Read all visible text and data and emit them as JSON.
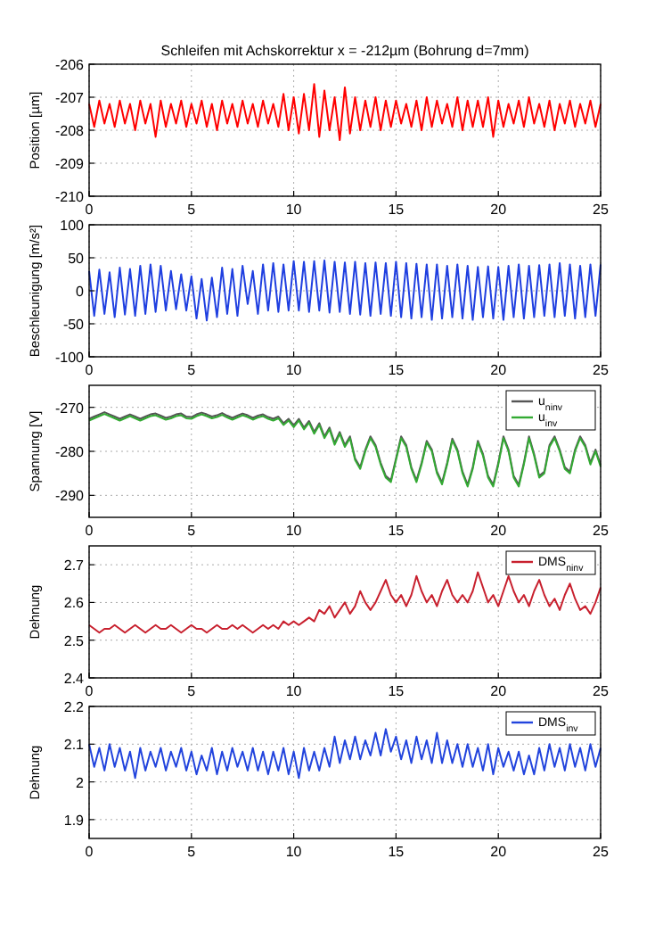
{
  "chart_data": [
    {
      "type": "line",
      "title": "Schleifen mit Achskorrektur x = -212µm (Bohrung d=7mm)",
      "ylabel": "Position [µm]",
      "xlim": [
        0,
        25
      ],
      "xticks": [
        0,
        5,
        10,
        15,
        20,
        25
      ],
      "ylim": [
        -210,
        -206
      ],
      "yticks": [
        -210,
        -209,
        -208,
        -207,
        -206
      ],
      "grid": true,
      "legend": false,
      "x": [
        0,
        0.25,
        0.5,
        0.75,
        1,
        1.25,
        1.5,
        1.75,
        2,
        2.25,
        2.5,
        2.75,
        3,
        3.25,
        3.5,
        3.75,
        4,
        4.25,
        4.5,
        4.75,
        5,
        5.25,
        5.5,
        5.75,
        6,
        6.25,
        6.5,
        6.75,
        7,
        7.25,
        7.5,
        7.75,
        8,
        8.25,
        8.5,
        8.75,
        9,
        9.25,
        9.5,
        9.75,
        10,
        10.25,
        10.5,
        10.75,
        11,
        11.25,
        11.5,
        11.75,
        12,
        12.25,
        12.5,
        12.75,
        13,
        13.25,
        13.5,
        13.75,
        14,
        14.25,
        14.5,
        14.75,
        15,
        15.25,
        15.5,
        15.75,
        16,
        16.25,
        16.5,
        16.75,
        17,
        17.25,
        17.5,
        17.75,
        18,
        18.25,
        18.5,
        18.75,
        19,
        19.25,
        19.5,
        19.75,
        20,
        20.25,
        20.5,
        20.75,
        21,
        21.25,
        21.5,
        21.75,
        22,
        22.25,
        22.5,
        22.75,
        23,
        23.25,
        23.5,
        23.75,
        24,
        24.25,
        24.5,
        24.75,
        25
      ],
      "series": [
        {
          "color": "#ff0000",
          "values": [
            -207.2,
            -207.9,
            -207.1,
            -207.8,
            -207.2,
            -207.9,
            -207.1,
            -207.8,
            -207.2,
            -208.0,
            -207.1,
            -207.8,
            -207.2,
            -208.2,
            -207.1,
            -207.9,
            -207.2,
            -207.8,
            -207.1,
            -207.9,
            -207.2,
            -207.8,
            -207.1,
            -207.9,
            -207.2,
            -208.0,
            -207.1,
            -207.8,
            -207.2,
            -207.9,
            -207.1,
            -207.8,
            -207.2,
            -207.9,
            -207.1,
            -207.8,
            -207.2,
            -207.9,
            -206.9,
            -208.0,
            -207.0,
            -208.1,
            -206.9,
            -208.0,
            -206.6,
            -208.2,
            -206.8,
            -208.0,
            -207.0,
            -208.3,
            -206.7,
            -208.1,
            -207.0,
            -208.0,
            -207.1,
            -207.9,
            -207.0,
            -208.0,
            -207.1,
            -207.9,
            -207.1,
            -207.8,
            -207.2,
            -207.9,
            -207.1,
            -208.0,
            -207.0,
            -207.9,
            -207.1,
            -207.8,
            -207.2,
            -207.9,
            -207.0,
            -208.0,
            -207.1,
            -207.9,
            -207.1,
            -207.9,
            -207.0,
            -208.2,
            -207.1,
            -207.9,
            -207.2,
            -207.8,
            -207.1,
            -207.9,
            -207.0,
            -207.8,
            -207.2,
            -207.9,
            -207.1,
            -208.0,
            -207.2,
            -207.8,
            -207.1,
            -207.9,
            -207.2,
            -207.8,
            -207.1,
            -207.9,
            -207.2
          ]
        }
      ]
    },
    {
      "type": "line",
      "ylabel": "Beschleunigung [m/s²]",
      "xlim": [
        0,
        25
      ],
      "xticks": [
        0,
        5,
        10,
        15,
        20,
        25
      ],
      "ylim": [
        -100,
        100
      ],
      "yticks": [
        -100,
        -50,
        0,
        50,
        100
      ],
      "grid": true,
      "legend": false,
      "x": [
        0,
        0.25,
        0.5,
        0.75,
        1,
        1.25,
        1.5,
        1.75,
        2,
        2.25,
        2.5,
        2.75,
        3,
        3.25,
        3.5,
        3.75,
        4,
        4.25,
        4.5,
        4.75,
        5,
        5.25,
        5.5,
        5.75,
        6,
        6.25,
        6.5,
        6.75,
        7,
        7.25,
        7.5,
        7.75,
        8,
        8.25,
        8.5,
        8.75,
        9,
        9.25,
        9.5,
        9.75,
        10,
        10.25,
        10.5,
        10.75,
        11,
        11.25,
        11.5,
        11.75,
        12,
        12.25,
        12.5,
        12.75,
        13,
        13.25,
        13.5,
        13.75,
        14,
        14.25,
        14.5,
        14.75,
        15,
        15.25,
        15.5,
        15.75,
        16,
        16.25,
        16.5,
        16.75,
        17,
        17.25,
        17.5,
        17.75,
        18,
        18.25,
        18.5,
        18.75,
        19,
        19.25,
        19.5,
        19.75,
        20,
        20.25,
        20.5,
        20.75,
        21,
        21.25,
        21.5,
        21.75,
        22,
        22.25,
        22.5,
        22.75,
        23,
        23.25,
        23.5,
        23.75,
        24,
        24.25,
        24.5,
        24.75,
        25
      ],
      "series": [
        {
          "color": "#1f3fe0",
          "values": [
            30,
            -38,
            32,
            -35,
            28,
            -40,
            35,
            -36,
            33,
            -38,
            38,
            -35,
            40,
            -32,
            38,
            -30,
            30,
            -28,
            25,
            -30,
            22,
            -42,
            18,
            -45,
            20,
            -40,
            35,
            -35,
            33,
            -38,
            38,
            -20,
            30,
            -35,
            40,
            -30,
            42,
            -32,
            40,
            -30,
            45,
            -30,
            44,
            -32,
            45,
            -30,
            46,
            -33,
            44,
            -32,
            43,
            -35,
            44,
            -36,
            42,
            -38,
            43,
            -35,
            42,
            -38,
            44,
            -40,
            42,
            -42,
            41,
            -40,
            40,
            -44,
            40,
            -42,
            38,
            -40,
            40,
            -42,
            38,
            -44,
            36,
            -40,
            37,
            -42,
            36,
            -44,
            38,
            -40,
            40,
            -42,
            38,
            -40,
            39,
            -38,
            40,
            -40,
            42,
            -38,
            40,
            -42,
            38,
            -40,
            40,
            -38,
            40
          ]
        }
      ]
    },
    {
      "type": "line",
      "ylabel": "Spannung [V]",
      "xlim": [
        0,
        25
      ],
      "xticks": [
        0,
        5,
        10,
        15,
        20,
        25
      ],
      "ylim": [
        -295,
        -265
      ],
      "yticks": [
        -290,
        -280,
        -270
      ],
      "grid": true,
      "legend": "top right",
      "x": [
        0,
        0.25,
        0.5,
        0.75,
        1,
        1.25,
        1.5,
        1.75,
        2,
        2.25,
        2.5,
        2.75,
        3,
        3.25,
        3.5,
        3.75,
        4,
        4.25,
        4.5,
        4.75,
        5,
        5.25,
        5.5,
        5.75,
        6,
        6.25,
        6.5,
        6.75,
        7,
        7.25,
        7.5,
        7.75,
        8,
        8.25,
        8.5,
        8.75,
        9,
        9.25,
        9.5,
        9.75,
        10,
        10.25,
        10.5,
        10.75,
        11,
        11.25,
        11.5,
        11.75,
        12,
        12.25,
        12.5,
        12.75,
        13,
        13.25,
        13.5,
        13.75,
        14,
        14.25,
        14.5,
        14.75,
        15,
        15.25,
        15.5,
        15.75,
        16,
        16.25,
        16.5,
        16.75,
        17,
        17.25,
        17.5,
        17.75,
        18,
        18.25,
        18.5,
        18.75,
        19,
        19.25,
        19.5,
        19.75,
        20,
        20.25,
        20.5,
        20.75,
        21,
        21.25,
        21.5,
        21.75,
        22,
        22.25,
        22.5,
        22.75,
        23,
        23.25,
        23.5,
        23.75,
        24,
        24.25,
        24.5,
        24.75,
        25
      ],
      "series": [
        {
          "name": "u$_{ninv}$",
          "color": "#555555",
          "values": [
            -272.6,
            -272.1,
            -271.6,
            -271.1,
            -271.6,
            -272.1,
            -272.6,
            -272.1,
            -271.6,
            -272.1,
            -272.6,
            -272.1,
            -271.6,
            -271.4,
            -271.9,
            -272.4,
            -272.1,
            -271.6,
            -271.4,
            -272.1,
            -272.2,
            -271.6,
            -271.2,
            -271.6,
            -272.1,
            -271.8,
            -271.3,
            -271.9,
            -272.4,
            -271.9,
            -271.4,
            -271.8,
            -272.4,
            -271.9,
            -271.6,
            -272.2,
            -272.6,
            -272.1,
            -273.6,
            -272.6,
            -274.1,
            -272.6,
            -274.6,
            -273.1,
            -275.6,
            -273.6,
            -276.6,
            -274.6,
            -278.1,
            -275.6,
            -278.6,
            -276.6,
            -281.6,
            -283.6,
            -279.6,
            -276.6,
            -278.6,
            -282.6,
            -285.6,
            -286.6,
            -281.6,
            -276.6,
            -278.6,
            -283.6,
            -286.6,
            -282.6,
            -277.6,
            -279.6,
            -284.6,
            -287.1,
            -282.6,
            -277.1,
            -279.6,
            -284.6,
            -287.6,
            -283.6,
            -277.6,
            -280.6,
            -285.6,
            -287.6,
            -282.6,
            -276.6,
            -279.6,
            -285.6,
            -287.6,
            -282.6,
            -276.6,
            -280.6,
            -285.6,
            -284.6,
            -278.6,
            -276.6,
            -279.6,
            -283.6,
            -284.6,
            -279.6,
            -276.6,
            -278.6,
            -282.6,
            -279.6,
            -283.1
          ]
        },
        {
          "name": "u$_{inv}$",
          "color": "#33aa33",
          "values": [
            -273,
            -272.5,
            -272,
            -271.5,
            -272,
            -272.5,
            -273,
            -272.5,
            -272,
            -272.5,
            -273,
            -272.5,
            -272,
            -271.8,
            -272.3,
            -272.8,
            -272.5,
            -272,
            -271.8,
            -272.5,
            -272.6,
            -272,
            -271.6,
            -272,
            -272.5,
            -272.2,
            -271.7,
            -272.3,
            -272.8,
            -272.3,
            -271.8,
            -272.2,
            -272.8,
            -272.3,
            -272,
            -272.6,
            -273,
            -272.5,
            -274,
            -273,
            -274.5,
            -273,
            -275,
            -273.5,
            -276,
            -274,
            -277,
            -275,
            -278.5,
            -276,
            -279,
            -277,
            -282,
            -284,
            -280,
            -277,
            -279,
            -283,
            -286,
            -287,
            -282,
            -277,
            -279,
            -284,
            -287,
            -283,
            -278,
            -280,
            -285,
            -287.5,
            -283,
            -277.5,
            -280,
            -285,
            -288,
            -284,
            -278,
            -281,
            -286,
            -288,
            -283,
            -277,
            -280,
            -286,
            -288,
            -283,
            -277,
            -281,
            -286,
            -285,
            -279,
            -277,
            -280,
            -284,
            -285,
            -280,
            -277,
            -279,
            -283,
            -280,
            -283.5
          ]
        }
      ]
    },
    {
      "type": "line",
      "ylabel": "Dehnung",
      "xlim": [
        0,
        25
      ],
      "xticks": [
        0,
        5,
        10,
        15,
        20,
        25
      ],
      "ylim": [
        2.4,
        2.75
      ],
      "yticks": [
        2.4,
        2.5,
        2.6,
        2.7
      ],
      "grid": true,
      "legend": "top right",
      "x": [
        0,
        0.25,
        0.5,
        0.75,
        1,
        1.25,
        1.5,
        1.75,
        2,
        2.25,
        2.5,
        2.75,
        3,
        3.25,
        3.5,
        3.75,
        4,
        4.25,
        4.5,
        4.75,
        5,
        5.25,
        5.5,
        5.75,
        6,
        6.25,
        6.5,
        6.75,
        7,
        7.25,
        7.5,
        7.75,
        8,
        8.25,
        8.5,
        8.75,
        9,
        9.25,
        9.5,
        9.75,
        10,
        10.25,
        10.5,
        10.75,
        11,
        11.25,
        11.5,
        11.75,
        12,
        12.25,
        12.5,
        12.75,
        13,
        13.25,
        13.5,
        13.75,
        14,
        14.25,
        14.5,
        14.75,
        15,
        15.25,
        15.5,
        15.75,
        16,
        16.25,
        16.5,
        16.75,
        17,
        17.25,
        17.5,
        17.75,
        18,
        18.25,
        18.5,
        18.75,
        19,
        19.25,
        19.5,
        19.75,
        20,
        20.25,
        20.5,
        20.75,
        21,
        21.25,
        21.5,
        21.75,
        22,
        22.25,
        22.5,
        22.75,
        23,
        23.25,
        23.5,
        23.75,
        24,
        24.25,
        24.5,
        24.75,
        25
      ],
      "series": [
        {
          "name": "DMS$_{ninv}$",
          "color": "#c8202e",
          "values": [
            2.54,
            2.53,
            2.52,
            2.53,
            2.53,
            2.54,
            2.53,
            2.52,
            2.53,
            2.54,
            2.53,
            2.52,
            2.53,
            2.54,
            2.53,
            2.53,
            2.54,
            2.53,
            2.52,
            2.53,
            2.54,
            2.53,
            2.53,
            2.52,
            2.53,
            2.54,
            2.53,
            2.53,
            2.54,
            2.53,
            2.54,
            2.53,
            2.52,
            2.53,
            2.54,
            2.53,
            2.54,
            2.53,
            2.55,
            2.54,
            2.55,
            2.54,
            2.55,
            2.56,
            2.55,
            2.58,
            2.57,
            2.59,
            2.56,
            2.58,
            2.6,
            2.57,
            2.59,
            2.63,
            2.6,
            2.58,
            2.6,
            2.63,
            2.66,
            2.62,
            2.6,
            2.62,
            2.59,
            2.62,
            2.67,
            2.63,
            2.6,
            2.62,
            2.59,
            2.63,
            2.66,
            2.62,
            2.6,
            2.62,
            2.6,
            2.63,
            2.68,
            2.64,
            2.6,
            2.62,
            2.59,
            2.63,
            2.67,
            2.63,
            2.6,
            2.62,
            2.59,
            2.63,
            2.66,
            2.62,
            2.59,
            2.61,
            2.58,
            2.62,
            2.65,
            2.61,
            2.58,
            2.59,
            2.57,
            2.6,
            2.64
          ]
        }
      ]
    },
    {
      "type": "line",
      "ylabel": "Dehnung",
      "xlim": [
        0,
        25
      ],
      "xticks": [
        0,
        5,
        10,
        15,
        20,
        25
      ],
      "ylim": [
        1.85,
        2.2
      ],
      "yticks": [
        1.9,
        2,
        2.1,
        2.2
      ],
      "grid": true,
      "legend": "top right",
      "x": [
        0,
        0.25,
        0.5,
        0.75,
        1,
        1.25,
        1.5,
        1.75,
        2,
        2.25,
        2.5,
        2.75,
        3,
        3.25,
        3.5,
        3.75,
        4,
        4.25,
        4.5,
        4.75,
        5,
        5.25,
        5.5,
        5.75,
        6,
        6.25,
        6.5,
        6.75,
        7,
        7.25,
        7.5,
        7.75,
        8,
        8.25,
        8.5,
        8.75,
        9,
        9.25,
        9.5,
        9.75,
        10,
        10.25,
        10.5,
        10.75,
        11,
        11.25,
        11.5,
        11.75,
        12,
        12.25,
        12.5,
        12.75,
        13,
        13.25,
        13.5,
        13.75,
        14,
        14.25,
        14.5,
        14.75,
        15,
        15.25,
        15.5,
        15.75,
        16,
        16.25,
        16.5,
        16.75,
        17,
        17.25,
        17.5,
        17.75,
        18,
        18.25,
        18.5,
        18.75,
        19,
        19.25,
        19.5,
        19.75,
        20,
        20.25,
        20.5,
        20.75,
        21,
        21.25,
        21.5,
        21.75,
        22,
        22.25,
        22.5,
        22.75,
        23,
        23.25,
        23.5,
        23.75,
        24,
        24.25,
        24.5,
        24.75,
        25
      ],
      "series": [
        {
          "name": "DMS$_{inv}$",
          "color": "#2244dd",
          "values": [
            2.1,
            2.04,
            2.09,
            2.03,
            2.1,
            2.04,
            2.09,
            2.03,
            2.08,
            2.01,
            2.09,
            2.03,
            2.08,
            2.04,
            2.09,
            2.03,
            2.08,
            2.04,
            2.09,
            2.03,
            2.08,
            2.02,
            2.07,
            2.03,
            2.09,
            2.02,
            2.08,
            2.03,
            2.09,
            2.04,
            2.08,
            2.03,
            2.09,
            2.03,
            2.08,
            2.02,
            2.08,
            2.03,
            2.09,
            2.02,
            2.08,
            2.01,
            2.09,
            2.03,
            2.08,
            2.03,
            2.09,
            2.04,
            2.12,
            2.05,
            2.11,
            2.06,
            2.12,
            2.06,
            2.11,
            2.07,
            2.13,
            2.07,
            2.14,
            2.08,
            2.12,
            2.06,
            2.11,
            2.05,
            2.12,
            2.06,
            2.11,
            2.05,
            2.13,
            2.05,
            2.11,
            2.05,
            2.1,
            2.04,
            2.1,
            2.04,
            2.09,
            2.03,
            2.1,
            2.02,
            2.09,
            2.04,
            2.08,
            2.03,
            2.08,
            2.02,
            2.07,
            2.02,
            2.09,
            2.03,
            2.1,
            2.04,
            2.09,
            2.03,
            2.1,
            2.04,
            2.09,
            2.03,
            2.1,
            2.04,
            2.09
          ]
        }
      ]
    }
  ]
}
